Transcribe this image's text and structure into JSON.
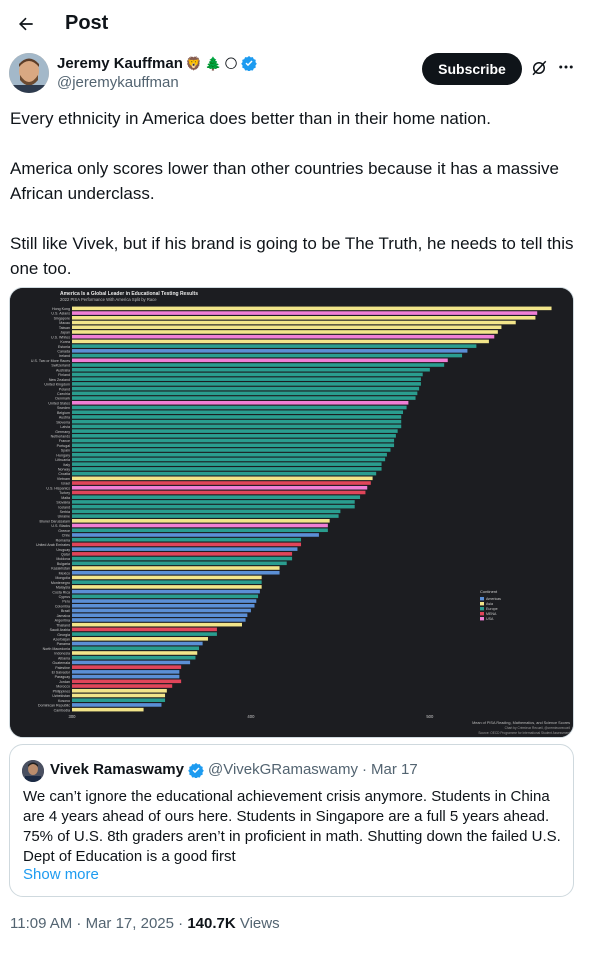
{
  "header": {
    "title": "Post",
    "back_icon": "arrow-left-icon"
  },
  "author": {
    "name": "Jeremy Kauffman",
    "handle": "@jeremykauffman",
    "emojis": [
      "🦁",
      "🌲",
      "🌕"
    ],
    "verified_icon": "verified-badge-icon"
  },
  "actions": {
    "subscribe_label": "Subscribe",
    "grok_icon": "grok-icon",
    "more_icon": "more-dots-icon"
  },
  "tweet": {
    "paragraphs": [
      "Every ethnicity in America does better than in their home nation.",
      "America only scores lower than other countries because it has a massive African underclass.",
      "Still like Vivek, but if his brand is going to be The Truth, he needs to tell this one too."
    ]
  },
  "chart_data": {
    "type": "bar",
    "orientation": "horizontal",
    "title": "America Is a Global Leader in Educational Testing Results",
    "subtitle": "2022 PISA Performance With America Split by Race",
    "xlabel": "Mean of PISA Reading, Mathematics, and Science Scores",
    "credit": [
      "Chart by Crémieux Recueil, @cremieuxrecueil",
      "Source: OECD Programme for International Student Assessment"
    ],
    "xlim": [
      300,
      580
    ],
    "x_ticks": [
      300,
      400,
      500
    ],
    "legend": {
      "title": "Continent",
      "placement": "bottom-right",
      "entries": [
        "Americas",
        "Asia",
        "Europe",
        "MENA",
        "USA"
      ]
    },
    "colors": {
      "Americas": "#5b8fd6",
      "Asia": "#f2e58a",
      "Europe": "#2a9d8f",
      "MENA": "#e0455a",
      "USA": "#f07fd6"
    },
    "categories": [
      "Hong Kong",
      "U.S. Asians",
      "Singapore",
      "Macau",
      "Taiwan",
      "Japan",
      "U.S. Whites",
      "Korea",
      "Estonia",
      "Canada",
      "Ireland",
      "U.S. Two or More Races",
      "Switzerland",
      "Australia",
      "Finland",
      "New Zealand",
      "United Kingdom",
      "Poland",
      "Czechia",
      "Denmark",
      "United States",
      "Sweden",
      "Belgium",
      "Austria",
      "Slovenia",
      "Latvia",
      "Germany",
      "Netherlands",
      "France",
      "Portugal",
      "Spain",
      "Hungary",
      "Lithuania",
      "Italy",
      "Norway",
      "Croatia",
      "Vietnam",
      "Israel",
      "U.S. Hispanics",
      "Turkey",
      "Malta",
      "Slovakia",
      "Iceland",
      "Serbia",
      "Ukraine",
      "Brunei Darussalam",
      "U.S. Blacks",
      "Greece",
      "Chile",
      "Romania",
      "United Arab Emirates",
      "Uruguay",
      "Qatar",
      "Moldova",
      "Bulgaria",
      "Kazakhstan",
      "Mexico",
      "Mongolia",
      "Montenegro",
      "Malaysia",
      "Costa Rica",
      "Cyprus",
      "Peru",
      "Colombia",
      "Brazil",
      "Jamaica",
      "Argentina",
      "Thailand",
      "Saudi Arabia",
      "Georgia",
      "Azerbaijan",
      "Panama",
      "North Macedonia",
      "Indonesia",
      "Albania",
      "Guatemala",
      "Palestine",
      "El Salvador",
      "Paraguay",
      "Jordan",
      "Morocco",
      "Philippines",
      "Uzbekistan",
      "Kosovo",
      "Dominican Republic",
      "Cambodia"
    ],
    "values": [
      568,
      560,
      559,
      548,
      540,
      538,
      536,
      533,
      526,
      521,
      518,
      510,
      508,
      500,
      496,
      495,
      495,
      494,
      493,
      492,
      488,
      487,
      485,
      484,
      484,
      484,
      482,
      481,
      480,
      480,
      478,
      476,
      475,
      473,
      473,
      470,
      468,
      467,
      465,
      464,
      461,
      458,
      458,
      450,
      449,
      444,
      443,
      443,
      438,
      428,
      428,
      426,
      423,
      423,
      420,
      416,
      416,
      406,
      406,
      406,
      405,
      404,
      403,
      402,
      400,
      398,
      397,
      395,
      381,
      381,
      376,
      373,
      371,
      370,
      369,
      366,
      361,
      360,
      360,
      361,
      356,
      353,
      352,
      352,
      350,
      340
    ],
    "continents": [
      "Asia",
      "USA",
      "Asia",
      "Asia",
      "Asia",
      "Asia",
      "USA",
      "Asia",
      "Europe",
      "Americas",
      "Europe",
      "USA",
      "Europe",
      "Europe",
      "Europe",
      "Europe",
      "Europe",
      "Europe",
      "Europe",
      "Europe",
      "USA",
      "Europe",
      "Europe",
      "Europe",
      "Europe",
      "Europe",
      "Europe",
      "Europe",
      "Europe",
      "Europe",
      "Europe",
      "Europe",
      "Europe",
      "Europe",
      "Europe",
      "Europe",
      "Asia",
      "MENA",
      "USA",
      "MENA",
      "Europe",
      "Europe",
      "Europe",
      "Europe",
      "Europe",
      "Asia",
      "USA",
      "Europe",
      "Americas",
      "Europe",
      "MENA",
      "Americas",
      "MENA",
      "Europe",
      "Europe",
      "Asia",
      "Americas",
      "Asia",
      "Europe",
      "Asia",
      "Americas",
      "Europe",
      "Americas",
      "Americas",
      "Americas",
      "Americas",
      "Americas",
      "Asia",
      "MENA",
      "Europe",
      "Asia",
      "Americas",
      "Europe",
      "Asia",
      "Europe",
      "Americas",
      "MENA",
      "Americas",
      "Americas",
      "MENA",
      "MENA",
      "Asia",
      "Asia",
      "Europe",
      "Americas",
      "Asia"
    ]
  },
  "quote": {
    "name": "Vivek Ramaswamy",
    "handle": "@VivekGRamaswamy",
    "separator": "·",
    "date": "Mar 17",
    "text": "We can’t ignore the educational achievement crisis anymore. Students in China are 4 years ahead of ours here. Students in Singapore are a full 5 years ahead. 75% of U.S. 8th graders aren’t in proficient in math. Shutting down the failed U.S. Dept of Education is a good first",
    "show_more": "Show more"
  },
  "footer": {
    "time": "11:09 AM · Mar 17, 2025 · ",
    "views_count": "140.7K",
    "views_label": " Views"
  }
}
